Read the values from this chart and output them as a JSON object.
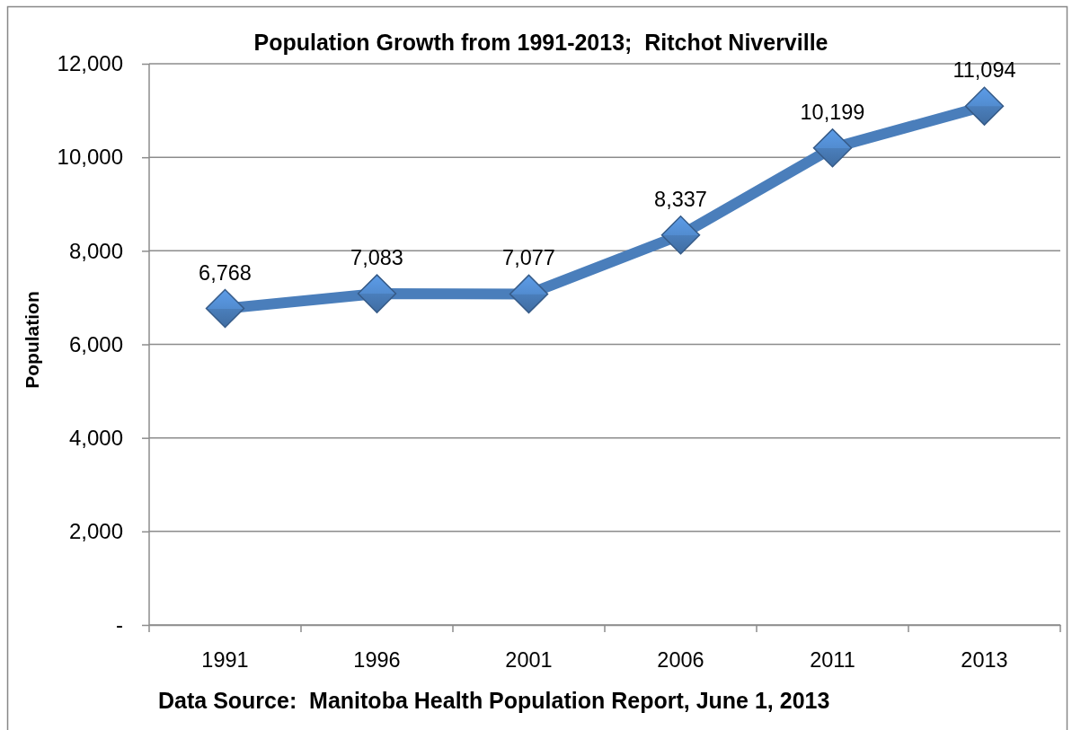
{
  "chart_data": {
    "type": "line",
    "title": "Population Growth from 1991-2013;  Ritchot Niverville",
    "ylabel": "Population",
    "annotations": [
      "Data Source:  Manitoba Health Population Report, June 1, 2013"
    ],
    "categories": [
      "1991",
      "1996",
      "2001",
      "2006",
      "2011",
      "2013"
    ],
    "series": [
      {
        "color": "#4a7ebb",
        "values": [
          6768,
          7083,
          7077,
          8337,
          10199,
          11094
        ],
        "value_labels": [
          "6,768",
          "7,083",
          "7,077",
          "8,337",
          "10,199",
          "11,094"
        ]
      }
    ],
    "ylim": [
      0,
      12000
    ],
    "yticks": [
      {
        "value": 0,
        "label": "-"
      },
      {
        "value": 2000,
        "label": "2,000"
      },
      {
        "value": 4000,
        "label": "4,000"
      },
      {
        "value": 6000,
        "label": "6,000"
      },
      {
        "value": 8000,
        "label": "8,000"
      },
      {
        "value": 10000,
        "label": "10,000"
      },
      {
        "value": 12000,
        "label": "12,000"
      }
    ],
    "grid": "y",
    "marker": "diamond",
    "line_style": "solid"
  }
}
